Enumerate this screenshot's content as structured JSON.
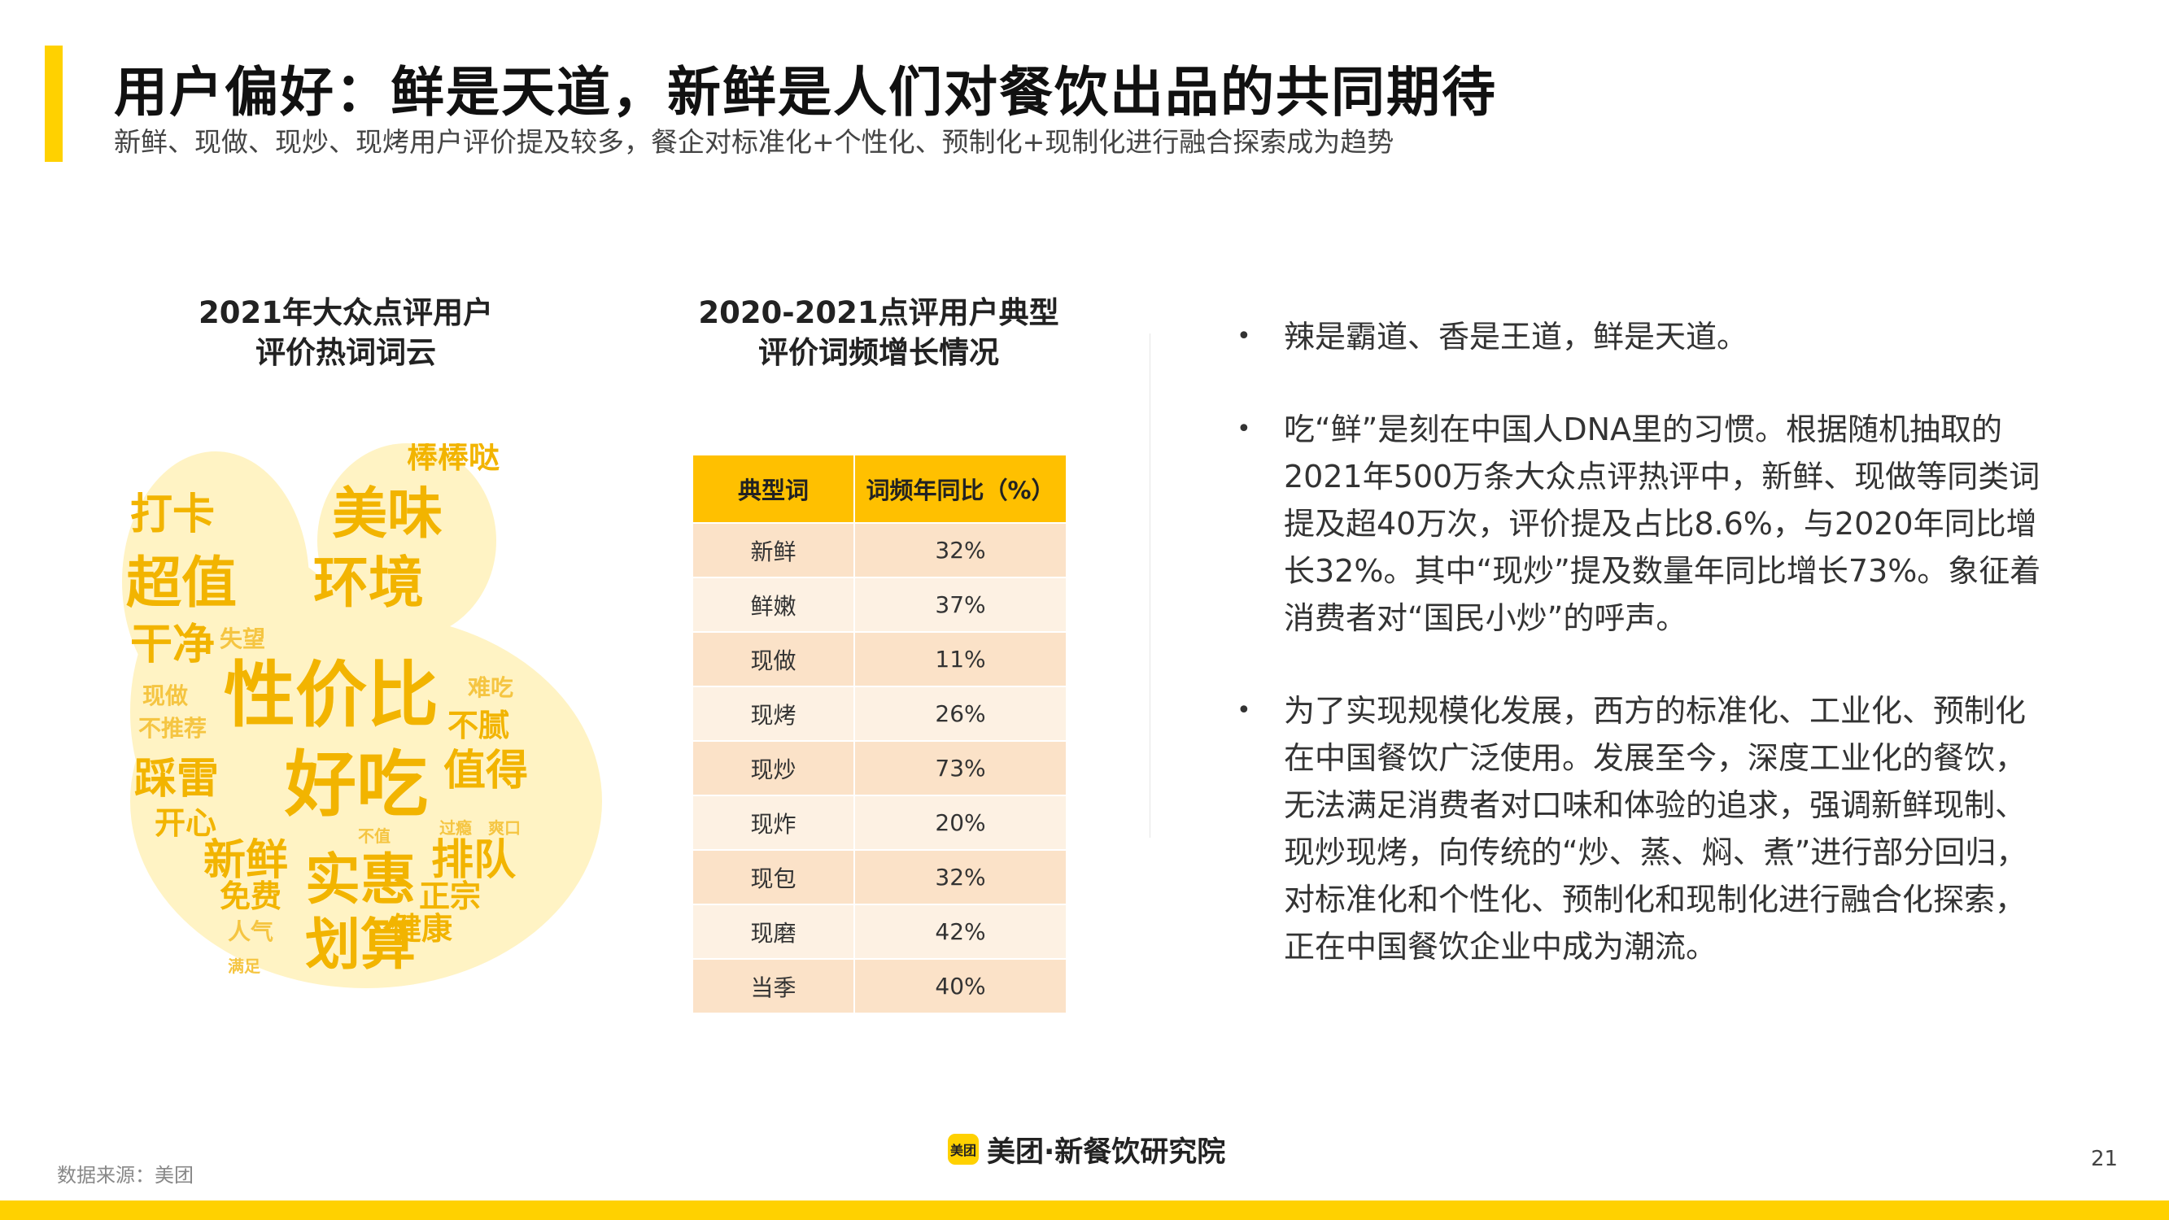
{
  "header": {
    "title": "用户偏好：鲜是天道，新鲜是人们对餐饮出品的共同期待",
    "subtitle": "新鲜、现做、现炒、现烤用户评价提及较多，餐企对标准化+个性化、预制化+现制化进行融合探索成为趋势"
  },
  "wordcloud": {
    "title_line1": "2021年大众点评用户",
    "title_line2": "评价热词词云",
    "words": [
      {
        "text": "美味",
        "weight": 5
      },
      {
        "text": "打卡",
        "weight": 4
      },
      {
        "text": "超值",
        "weight": 5
      },
      {
        "text": "环境",
        "weight": 5
      },
      {
        "text": "棒棒哒",
        "weight": 3
      },
      {
        "text": "干净",
        "weight": 4
      },
      {
        "text": "失望",
        "weight": 2
      },
      {
        "text": "性价比",
        "weight": 6
      },
      {
        "text": "难吃",
        "weight": 2
      },
      {
        "text": "不腻",
        "weight": 3
      },
      {
        "text": "现做",
        "weight": 2
      },
      {
        "text": "不推荐",
        "weight": 2
      },
      {
        "text": "踩雷",
        "weight": 4
      },
      {
        "text": "好吃",
        "weight": 6
      },
      {
        "text": "值得",
        "weight": 4
      },
      {
        "text": "开心",
        "weight": 3
      },
      {
        "text": "新鲜",
        "weight": 4
      },
      {
        "text": "实惠",
        "weight": 5
      },
      {
        "text": "排队",
        "weight": 4
      },
      {
        "text": "免费",
        "weight": 3
      },
      {
        "text": "正宗",
        "weight": 3
      },
      {
        "text": "人气",
        "weight": 2
      },
      {
        "text": "健康",
        "weight": 3
      },
      {
        "text": "划算",
        "weight": 5
      },
      {
        "text": "满足",
        "weight": 1
      },
      {
        "text": "不值",
        "weight": 1
      },
      {
        "text": "过瘾",
        "weight": 1
      },
      {
        "text": "爽口",
        "weight": 1
      }
    ]
  },
  "table": {
    "title_line1": "2020-2021点评用户典型",
    "title_line2": "评价词频增长情况",
    "headers": [
      "典型词",
      "词频年同比（%）"
    ],
    "rows": [
      [
        "新鲜",
        "32%"
      ],
      [
        "鲜嫩",
        "37%"
      ],
      [
        "现做",
        "11%"
      ],
      [
        "现烤",
        "26%"
      ],
      [
        "现炒",
        "73%"
      ],
      [
        "现炸",
        "20%"
      ],
      [
        "现包",
        "32%"
      ],
      [
        "现磨",
        "42%"
      ],
      [
        "当季",
        "40%"
      ]
    ]
  },
  "bullets": [
    "辣是霸道、香是王道，鲜是天道。",
    "吃“鲜”是刻在中国人DNA里的习惯。根据随机抽取的2021年500万条大众点评热评中，新鲜、现做等同类词提及超40万次，评价提及占比8.6%，与2020年同比增长32%。其中“现炒”提及数量年同比增长73%。象征着消费者对“国民小炒”的呼声。",
    "为了实现规模化发展，西方的标准化、工业化、预制化在中国餐饮广泛使用。发展至今，深度工业化的餐饮，无法满足消费者对口味和体验的追求，强调新鲜现制、现炒现烤，向传统的“炒、蒸、焖、煮”进行部分回归，对标准化和个性化、预制化和现制化进行融合化探索，正在中国餐饮企业中成为潮流。"
  ],
  "footer": {
    "source": "数据来源：美团",
    "logo_text": "美团",
    "brand": "美团·新餐饮研究院",
    "page_number": "21"
  },
  "colors": {
    "accent": "#FFD100",
    "table_header": "#FFC000",
    "row_odd": "#FBE2C8",
    "row_even": "#FDF1E3",
    "wordcloud_main": "#F2B400"
  }
}
